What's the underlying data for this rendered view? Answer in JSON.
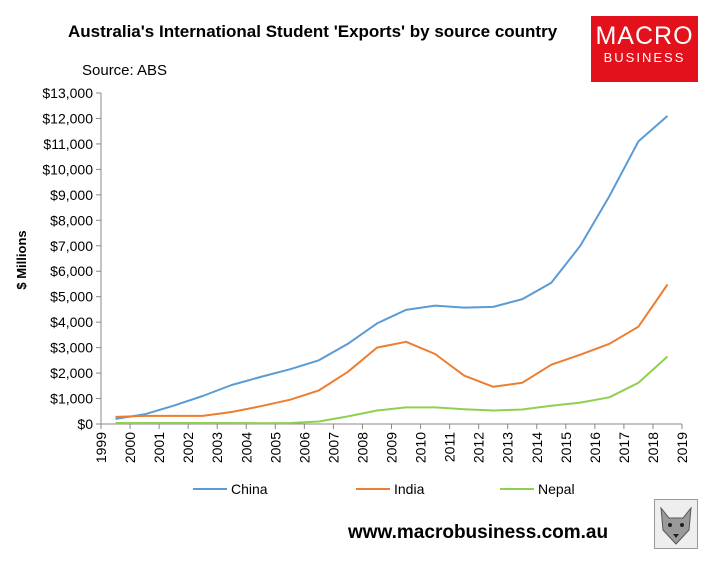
{
  "title": "Australia's International Student 'Exports' by source country",
  "source": "Source: ABS",
  "logo": {
    "line1": "MACRO",
    "line2": "BUSINESS",
    "color": "#e3111b"
  },
  "website": "www.macrobusiness.com.au",
  "wolf_icon": "wolf-icon",
  "chart_data": {
    "type": "line",
    "ylabel": "$ Millions",
    "xlabel": "",
    "ylim": [
      0,
      13000
    ],
    "xlim": [
      1999,
      2019
    ],
    "y_ticks": [
      0,
      1000,
      2000,
      3000,
      4000,
      5000,
      6000,
      7000,
      8000,
      9000,
      10000,
      11000,
      12000,
      13000
    ],
    "y_tick_labels": [
      "$0",
      "$1,000",
      "$2,000",
      "$3,000",
      "$4,000",
      "$5,000",
      "$6,000",
      "$7,000",
      "$8,000",
      "$9,000",
      "$10,000",
      "$11,000",
      "$12,000",
      "$13,000"
    ],
    "x_ticks": [
      "1999",
      "2000",
      "2001",
      "2002",
      "2003",
      "2004",
      "2005",
      "2006",
      "2007",
      "2008",
      "2009",
      "2010",
      "2011",
      "2012",
      "2013",
      "2014",
      "2015",
      "2016",
      "2017",
      "2018",
      "2019"
    ],
    "grid": false,
    "legend": "bottom",
    "x": [
      1999.5,
      2000.5,
      2001.5,
      2002.5,
      2003.5,
      2004.5,
      2005.5,
      2006.5,
      2007.5,
      2008.5,
      2009.5,
      2010.5,
      2011.5,
      2012.5,
      2013.5,
      2014.5,
      2015.5,
      2016.5,
      2017.5,
      2018.5
    ],
    "series": [
      {
        "name": "China",
        "color": "#5b9bd5",
        "values": [
          200,
          380,
          720,
          1100,
          1530,
          1850,
          2150,
          2500,
          3150,
          3950,
          4480,
          4650,
          4570,
          4600,
          4900,
          5550,
          7000,
          8950,
          11100,
          12100
        ]
      },
      {
        "name": "India",
        "color": "#ed7d31",
        "values": [
          280,
          320,
          320,
          320,
          470,
          700,
          950,
          1320,
          2050,
          3000,
          3230,
          2750,
          1900,
          1460,
          1620,
          2330,
          2720,
          3150,
          3820,
          5480
        ]
      },
      {
        "name": "Nepal",
        "color": "#8fd14f",
        "values": [
          40,
          40,
          40,
          40,
          40,
          30,
          40,
          100,
          300,
          530,
          650,
          650,
          580,
          530,
          570,
          720,
          840,
          1050,
          1620,
          2650
        ]
      }
    ]
  }
}
